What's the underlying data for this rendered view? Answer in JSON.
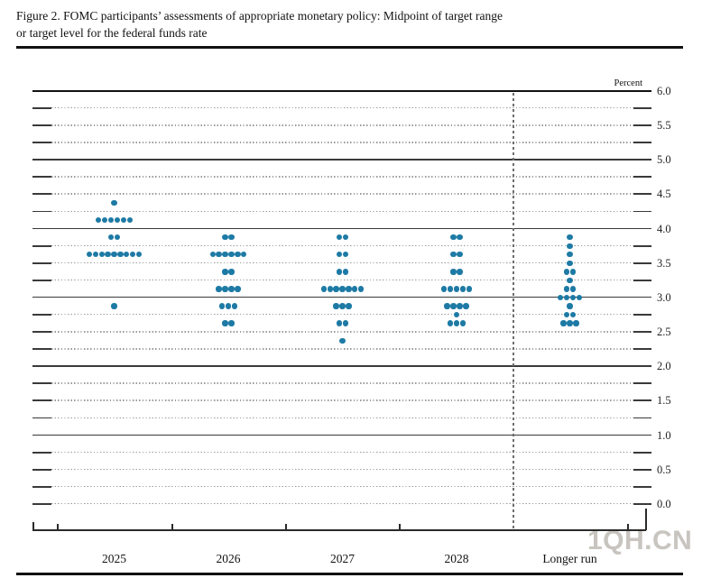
{
  "title": {
    "line1": "Figure 2. FOMC participants’ assessments of appropriate monetary policy: Midpoint of target range",
    "line2": "or target level for the federal funds rate"
  },
  "watermark": "1QH.CN",
  "colors": {
    "dot": "#1d7aa5",
    "grid_dotted": "#999999",
    "grid_solid": "#3a3a3a",
    "top_border": "#111111",
    "axis": "#2a2a2a",
    "separator": "#6e6e6e",
    "watermark": "#c8c4bf"
  },
  "chart_data": {
    "type": "scatter",
    "subtype": "fomc-dot-plot",
    "title": "FOMC participants’ assessments of appropriate monetary policy: Midpoint of target range or target level for the federal funds rate",
    "xlabel": "",
    "ylabel": "Percent",
    "ylim": [
      0.0,
      6.0
    ],
    "grid_interval": 0.25,
    "label_interval": 0.5,
    "ytick_labels": [
      "6.0",
      "5.5",
      "5.0",
      "4.5",
      "4.0",
      "3.5",
      "3.0",
      "2.5",
      "2.0",
      "1.5",
      "1.0",
      "0.5",
      "0.0"
    ],
    "solid_gridlines_at": [
      6.0,
      5.0,
      4.0,
      3.0,
      2.0,
      1.0
    ],
    "grid": true,
    "legend": null,
    "separator_before_category": "Longer run",
    "categories": [
      "2025",
      "2026",
      "2027",
      "2028",
      "Longer run"
    ],
    "dots_per_category": 19,
    "series": [
      {
        "category": "2025",
        "dots": [
          {
            "rate": 4.375,
            "count": 1
          },
          {
            "rate": 4.125,
            "count": 6
          },
          {
            "rate": 3.875,
            "count": 2
          },
          {
            "rate": 3.625,
            "count": 9
          },
          {
            "rate": 2.875,
            "count": 1
          }
        ]
      },
      {
        "category": "2026",
        "dots": [
          {
            "rate": 3.875,
            "count": 2
          },
          {
            "rate": 3.625,
            "count": 6
          },
          {
            "rate": 3.375,
            "count": 2
          },
          {
            "rate": 3.125,
            "count": 4
          },
          {
            "rate": 2.875,
            "count": 3
          },
          {
            "rate": 2.625,
            "count": 2
          }
        ]
      },
      {
        "category": "2027",
        "dots": [
          {
            "rate": 3.875,
            "count": 2
          },
          {
            "rate": 3.625,
            "count": 2
          },
          {
            "rate": 3.375,
            "count": 2
          },
          {
            "rate": 3.125,
            "count": 7
          },
          {
            "rate": 2.875,
            "count": 3
          },
          {
            "rate": 2.625,
            "count": 2
          },
          {
            "rate": 2.375,
            "count": 1
          }
        ]
      },
      {
        "category": "2028",
        "dots": [
          {
            "rate": 3.875,
            "count": 2
          },
          {
            "rate": 3.625,
            "count": 2
          },
          {
            "rate": 3.375,
            "count": 2
          },
          {
            "rate": 3.125,
            "count": 5
          },
          {
            "rate": 2.875,
            "count": 4
          },
          {
            "rate": 2.75,
            "count": 1
          },
          {
            "rate": 2.625,
            "count": 3
          }
        ]
      },
      {
        "category": "Longer run",
        "dots": [
          {
            "rate": 3.875,
            "count": 1
          },
          {
            "rate": 3.75,
            "count": 1
          },
          {
            "rate": 3.625,
            "count": 1
          },
          {
            "rate": 3.5,
            "count": 1
          },
          {
            "rate": 3.375,
            "count": 2
          },
          {
            "rate": 3.25,
            "count": 1
          },
          {
            "rate": 3.125,
            "count": 2
          },
          {
            "rate": 3.0,
            "count": 4
          },
          {
            "rate": 2.875,
            "count": 1
          },
          {
            "rate": 2.75,
            "count": 2
          },
          {
            "rate": 2.625,
            "count": 3
          }
        ]
      }
    ]
  }
}
